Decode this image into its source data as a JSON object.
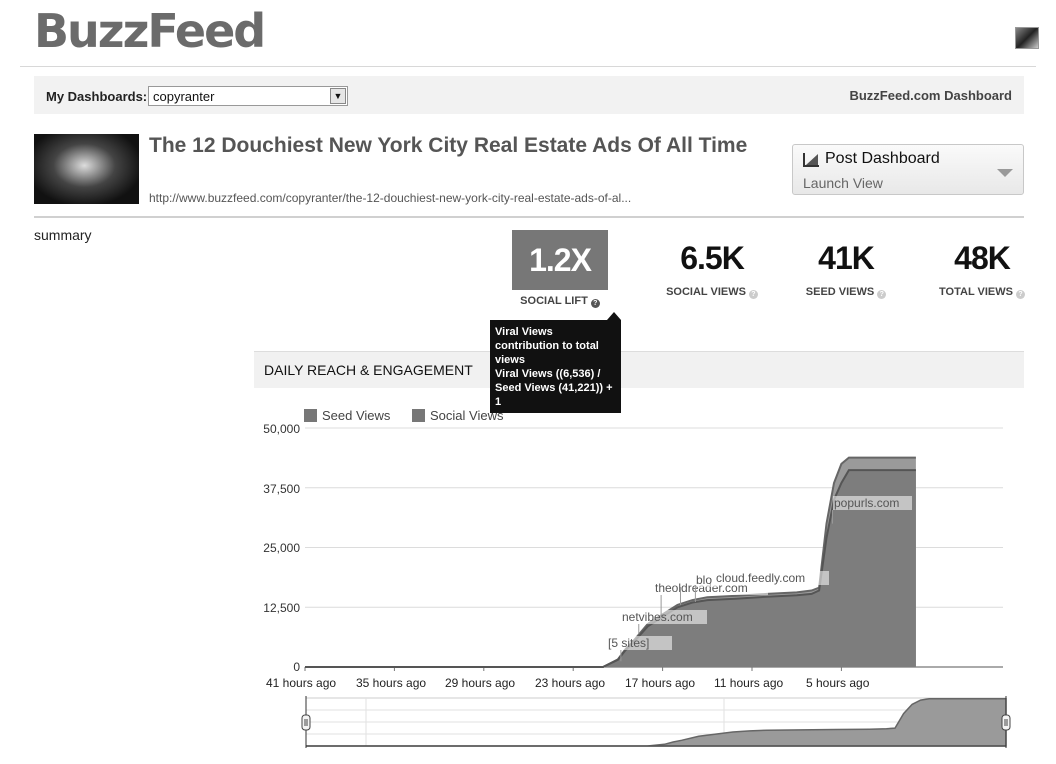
{
  "brand": {
    "logo": "BuzzFeed"
  },
  "dashbar": {
    "label": "My Dashboards:",
    "selected": "copyranter",
    "right_link": "BuzzFeed.com Dashboard"
  },
  "post": {
    "title": "The 12 Douchiest New York City Real Estate Ads Of All Time",
    "url": "http://www.buzzfeed.com/copyranter/the-12-douchiest-new-york-city-real-estate-ads-of-al..."
  },
  "post_dashboard": {
    "title": "Post Dashboard",
    "subtitle": "Launch View"
  },
  "summary_label": "summary",
  "stats": [
    {
      "value": "1.2X",
      "caption": "SOCIAL LIFT"
    },
    {
      "value": "6.5K",
      "caption": "SOCIAL VIEWS"
    },
    {
      "value": "41K",
      "caption": "SEED VIEWS"
    },
    {
      "value": "48K",
      "caption": "TOTAL VIEWS"
    }
  ],
  "tooltip": {
    "line1": "Viral Views contribution to total views",
    "line2": "Viral Views ((6,536) / Seed Views (41,221)) + 1"
  },
  "section_title": "DAILY REACH & ENGAGEMENT",
  "chart_data": {
    "type": "area",
    "title": "",
    "xlabel": "",
    "ylabel": "",
    "ylim": [
      0,
      50000
    ],
    "y_ticks": [
      "50,000",
      "37,500",
      "25,000",
      "12,500",
      "0"
    ],
    "x_ticks": [
      "41 hours ago",
      "35 hours ago",
      "29 hours ago",
      "23 hours ago",
      "17 hours ago",
      "11 hours ago",
      "5 hours ago"
    ],
    "x_hours_ago": [
      41,
      35,
      29,
      23,
      17,
      11,
      5
    ],
    "legend": "top-left",
    "grid": true,
    "series": [
      {
        "name": "Seed Views",
        "color": "#777777",
        "points": [
          [
            41,
            0
          ],
          [
            21,
            0
          ],
          [
            20,
            1500
          ],
          [
            19.5,
            3500
          ],
          [
            19,
            5000
          ],
          [
            18,
            8500
          ],
          [
            17,
            10500
          ],
          [
            16,
            12500
          ],
          [
            15,
            13500
          ],
          [
            14,
            14000
          ],
          [
            12,
            14300
          ],
          [
            10,
            14700
          ],
          [
            8,
            15000
          ],
          [
            7,
            15300
          ],
          [
            6.5,
            16000
          ],
          [
            6,
            27000
          ],
          [
            5.5,
            35000
          ],
          [
            5,
            38500
          ],
          [
            4.5,
            41200
          ],
          [
            0,
            41200
          ]
        ]
      },
      {
        "name": "Social Views",
        "color": "#909090",
        "points": [
          [
            41,
            0
          ],
          [
            21,
            0
          ],
          [
            20,
            1600
          ],
          [
            19.5,
            3700
          ],
          [
            19,
            5300
          ],
          [
            18,
            9000
          ],
          [
            17,
            11000
          ],
          [
            16,
            13000
          ],
          [
            15,
            14000
          ],
          [
            14,
            14600
          ],
          [
            12,
            14900
          ],
          [
            10,
            15300
          ],
          [
            8,
            15600
          ],
          [
            7,
            16000
          ],
          [
            6.5,
            16600
          ],
          [
            6,
            30000
          ],
          [
            5.5,
            38500
          ],
          [
            5,
            42500
          ],
          [
            4.5,
            43800
          ],
          [
            0,
            43800
          ]
        ]
      }
    ],
    "annotations": [
      "[5 sites]",
      "netvibes.com",
      "theoldreader.com",
      "blo",
      "cloud.feedly.com",
      "popurls.com"
    ]
  }
}
